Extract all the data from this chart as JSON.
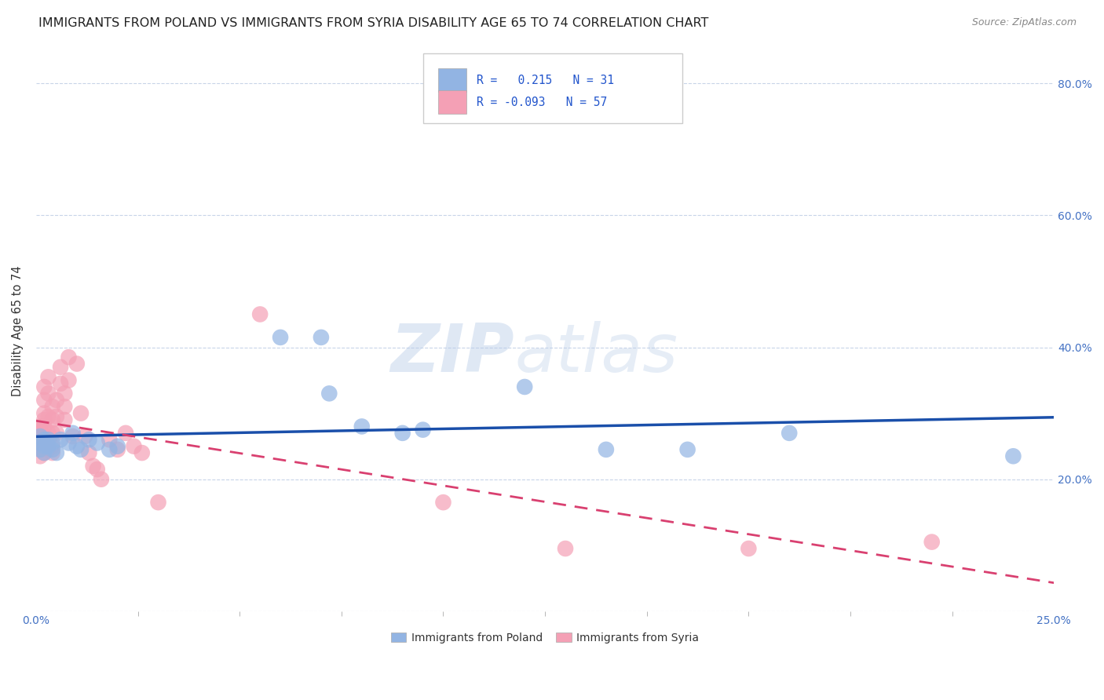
{
  "title": "IMMIGRANTS FROM POLAND VS IMMIGRANTS FROM SYRIA DISABILITY AGE 65 TO 74 CORRELATION CHART",
  "source": "Source: ZipAtlas.com",
  "ylabel": "Disability Age 65 to 74",
  "xlim": [
    0.0,
    0.25
  ],
  "ylim": [
    0.0,
    0.85
  ],
  "poland_R": 0.215,
  "poland_N": 31,
  "syria_R": -0.093,
  "syria_N": 57,
  "poland_color": "#92b4e3",
  "poland_line_color": "#1a4faa",
  "syria_color": "#f4a0b5",
  "syria_line_color": "#d94070",
  "background_color": "#ffffff",
  "grid_color": "#c8d4e8",
  "title_fontsize": 11.5,
  "poland_x": [
    0.001,
    0.001,
    0.001,
    0.002,
    0.002,
    0.002,
    0.003,
    0.003,
    0.004,
    0.004,
    0.005,
    0.006,
    0.008,
    0.009,
    0.01,
    0.011,
    0.013,
    0.015,
    0.018,
    0.02,
    0.06,
    0.07,
    0.072,
    0.08,
    0.09,
    0.095,
    0.12,
    0.14,
    0.16,
    0.185,
    0.24
  ],
  "poland_y": [
    0.245,
    0.255,
    0.265,
    0.24,
    0.25,
    0.26,
    0.25,
    0.26,
    0.245,
    0.255,
    0.24,
    0.26,
    0.255,
    0.27,
    0.25,
    0.245,
    0.26,
    0.255,
    0.245,
    0.25,
    0.415,
    0.415,
    0.33,
    0.28,
    0.27,
    0.275,
    0.34,
    0.245,
    0.245,
    0.27,
    0.235
  ],
  "syria_x": [
    0.001,
    0.001,
    0.001,
    0.001,
    0.001,
    0.001,
    0.001,
    0.001,
    0.001,
    0.002,
    0.002,
    0.002,
    0.002,
    0.002,
    0.002,
    0.002,
    0.002,
    0.003,
    0.003,
    0.003,
    0.003,
    0.003,
    0.003,
    0.004,
    0.004,
    0.004,
    0.004,
    0.004,
    0.005,
    0.005,
    0.005,
    0.006,
    0.006,
    0.007,
    0.007,
    0.007,
    0.008,
    0.008,
    0.009,
    0.01,
    0.011,
    0.012,
    0.013,
    0.014,
    0.015,
    0.016,
    0.018,
    0.02,
    0.022,
    0.024,
    0.026,
    0.03,
    0.055,
    0.1,
    0.13,
    0.175,
    0.22
  ],
  "syria_y": [
    0.26,
    0.27,
    0.255,
    0.275,
    0.25,
    0.28,
    0.265,
    0.245,
    0.235,
    0.3,
    0.32,
    0.34,
    0.28,
    0.265,
    0.25,
    0.29,
    0.24,
    0.33,
    0.355,
    0.295,
    0.27,
    0.26,
    0.245,
    0.31,
    0.29,
    0.27,
    0.25,
    0.24,
    0.32,
    0.295,
    0.27,
    0.37,
    0.345,
    0.33,
    0.31,
    0.29,
    0.385,
    0.35,
    0.265,
    0.375,
    0.3,
    0.265,
    0.24,
    0.22,
    0.215,
    0.2,
    0.26,
    0.245,
    0.27,
    0.25,
    0.24,
    0.165,
    0.45,
    0.165,
    0.095,
    0.095,
    0.105
  ],
  "watermark_zip": "ZIP",
  "watermark_atlas": "atlas",
  "legend_poland_label": "Immigrants from Poland",
  "legend_syria_label": "Immigrants from Syria",
  "right_ytick_vals": [
    0.2,
    0.4,
    0.6,
    0.8
  ],
  "right_ytick_labels": [
    "20.0%",
    "40.0%",
    "60.0%",
    "80.0%"
  ]
}
